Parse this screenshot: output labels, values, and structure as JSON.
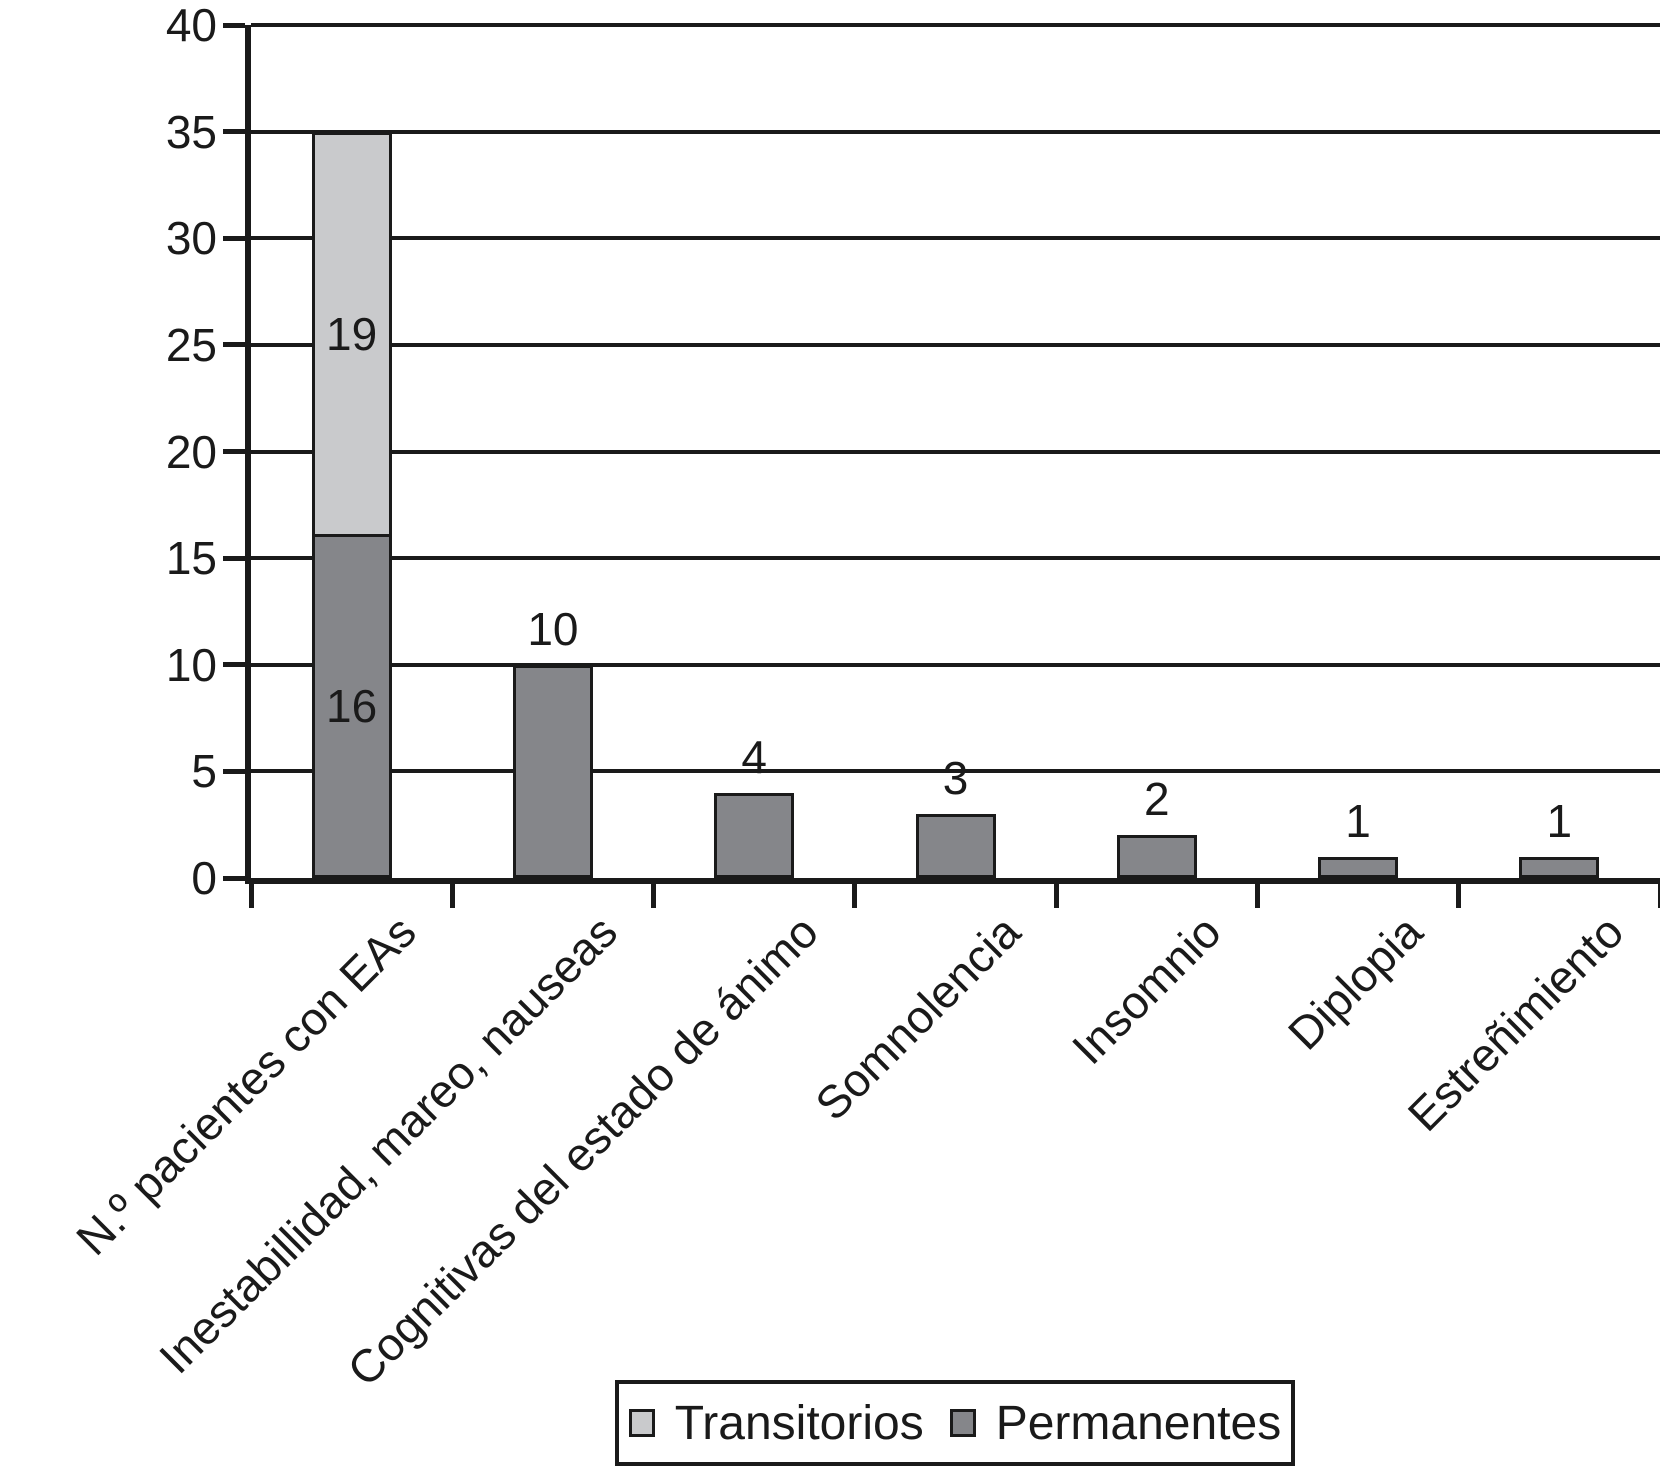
{
  "chart_data": {
    "type": "bar",
    "stacked": true,
    "title": "",
    "xlabel": "",
    "ylabel": "",
    "ylim": [
      0,
      40
    ],
    "y_ticks": [
      0,
      5,
      10,
      15,
      20,
      25,
      30,
      35,
      40
    ],
    "grid": "horizontal",
    "categories": [
      "N.º pacientes con EAs",
      "Inestabillidad, mareo, nauseas",
      "Cognitivas del estado de ánimo",
      "Somnolencia",
      "Insomnio",
      "Diplopia",
      "Estreñimiento"
    ],
    "series": [
      {
        "name": "Permanentes",
        "color": "#85868a",
        "values": [
          16,
          10,
          4,
          3,
          2,
          1,
          1
        ]
      },
      {
        "name": "Transitorios",
        "color": "#c9cacc",
        "values": [
          19,
          0,
          0,
          0,
          0,
          0,
          0
        ]
      }
    ],
    "bar_value_labels": {
      "inside_segments": [
        {
          "category": 0,
          "series": "Transitorios",
          "text": "19"
        },
        {
          "category": 0,
          "series": "Permanentes",
          "text": "16"
        }
      ],
      "above_bars": [
        {
          "category": 1,
          "text": "10"
        },
        {
          "category": 2,
          "text": "4"
        },
        {
          "category": 3,
          "text": "3"
        },
        {
          "category": 4,
          "text": "2"
        },
        {
          "category": 5,
          "text": "1"
        },
        {
          "category": 6,
          "text": "1"
        }
      ]
    },
    "legend": {
      "position": "bottom",
      "items": [
        {
          "label": "Transitorios",
          "color": "#c9cacc"
        },
        {
          "label": "Permanentes",
          "color": "#85868a"
        }
      ]
    },
    "colors": {
      "axis": "#1a1a1a",
      "background": "#ffffff"
    }
  }
}
